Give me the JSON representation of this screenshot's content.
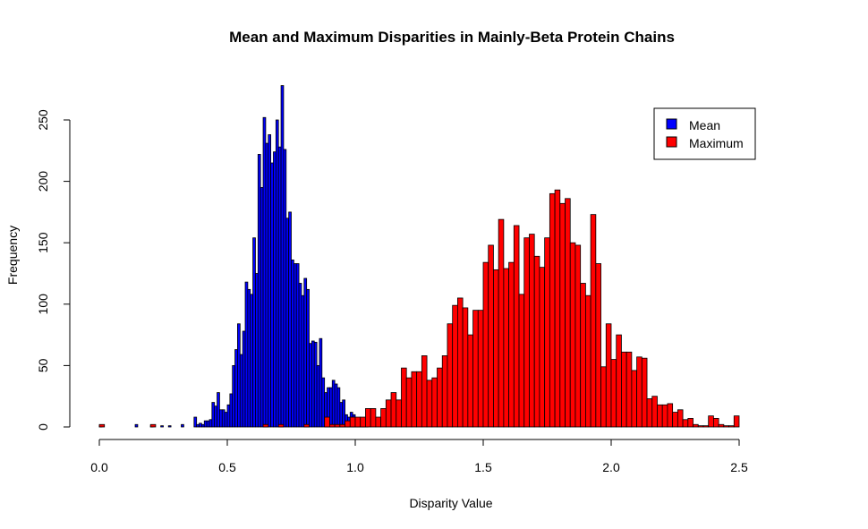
{
  "chart_data": {
    "type": "bar",
    "title": "Mean and Maximum Disparities in Mainly-Beta Protein Chains",
    "xlabel": "Disparity Value",
    "ylabel": "Frequency",
    "xlim": [
      0,
      2.5
    ],
    "ylim": [
      0,
      280
    ],
    "x_ticks": [
      {
        "value": 0.0,
        "label": "0.0"
      },
      {
        "value": 0.5,
        "label": "0.5"
      },
      {
        "value": 1.0,
        "label": "1.0"
      },
      {
        "value": 1.5,
        "label": "1.5"
      },
      {
        "value": 2.0,
        "label": "2.0"
      },
      {
        "value": 2.5,
        "label": "2.5"
      }
    ],
    "y_ticks": [
      {
        "value": 0,
        "label": "0"
      },
      {
        "value": 50,
        "label": "50"
      },
      {
        "value": 100,
        "label": "100"
      },
      {
        "value": 150,
        "label": "150"
      },
      {
        "value": 200,
        "label": "200"
      },
      {
        "value": 250,
        "label": "250"
      }
    ],
    "grid": false,
    "legend_position": "top-right",
    "legend": [
      {
        "label": "Mean",
        "color": "#0000ff"
      },
      {
        "label": "Maximum",
        "color": "#ff0000"
      }
    ],
    "series": [
      {
        "name": "Mean",
        "color": "#0000ff",
        "bin_width": 0.01,
        "bin_starts": [
          0.0,
          0.14,
          0.2,
          0.24,
          0.27,
          0.32,
          0.37,
          0.38,
          0.39,
          0.4,
          0.41,
          0.42,
          0.43,
          0.44,
          0.45,
          0.46,
          0.47,
          0.48,
          0.49,
          0.5,
          0.51,
          0.52,
          0.53,
          0.54,
          0.55,
          0.56,
          0.57,
          0.58,
          0.59,
          0.6,
          0.61,
          0.62,
          0.63,
          0.64,
          0.65,
          0.66,
          0.67,
          0.68,
          0.69,
          0.7,
          0.71,
          0.72,
          0.73,
          0.74,
          0.75,
          0.76,
          0.77,
          0.78,
          0.79,
          0.8,
          0.81,
          0.82,
          0.83,
          0.84,
          0.85,
          0.86,
          0.87,
          0.88,
          0.89,
          0.9,
          0.91,
          0.92,
          0.93,
          0.94,
          0.95,
          0.96,
          0.97,
          0.98,
          0.99,
          1.0,
          1.01,
          1.02,
          1.03,
          1.04
        ],
        "values": [
          1,
          2,
          1,
          1,
          1,
          2,
          8,
          2,
          3,
          2,
          5,
          5,
          6,
          20,
          17,
          28,
          14,
          14,
          12,
          18,
          27,
          50,
          63,
          84,
          59,
          78,
          118,
          112,
          108,
          154,
          125,
          222,
          195,
          252,
          231,
          238,
          215,
          224,
          250,
          228,
          278,
          226,
          170,
          175,
          136,
          133,
          133,
          117,
          107,
          121,
          112,
          68,
          70,
          69,
          50,
          72,
          40,
          28,
          32,
          32,
          38,
          35,
          32,
          20,
          22,
          10,
          8,
          12,
          10,
          5,
          3,
          3,
          2,
          1
        ]
      },
      {
        "name": "Maximum",
        "color": "#ff0000",
        "bin_width": 0.02,
        "bin_starts": [
          0.0,
          0.2,
          0.64,
          0.7,
          0.8,
          0.88,
          0.9,
          0.92,
          0.94,
          0.96,
          0.98,
          1.0,
          1.02,
          1.04,
          1.06,
          1.08,
          1.1,
          1.12,
          1.14,
          1.16,
          1.18,
          1.2,
          1.22,
          1.24,
          1.26,
          1.28,
          1.3,
          1.32,
          1.34,
          1.36,
          1.38,
          1.4,
          1.42,
          1.44,
          1.46,
          1.48,
          1.5,
          1.52,
          1.54,
          1.56,
          1.58,
          1.6,
          1.62,
          1.64,
          1.66,
          1.68,
          1.7,
          1.72,
          1.74,
          1.76,
          1.78,
          1.8,
          1.82,
          1.84,
          1.86,
          1.88,
          1.9,
          1.92,
          1.94,
          1.96,
          1.98,
          2.0,
          2.02,
          2.04,
          2.06,
          2.08,
          2.1,
          2.12,
          2.14,
          2.16,
          2.18,
          2.2,
          2.22,
          2.24,
          2.26,
          2.28,
          2.3,
          2.32,
          2.34,
          2.36,
          2.38,
          2.4,
          2.42,
          2.44,
          2.46,
          2.48
        ],
        "values": [
          2,
          2,
          2,
          2,
          2,
          8,
          2,
          2,
          2,
          5,
          8,
          8,
          8,
          15,
          15,
          8,
          15,
          22,
          28,
          22,
          48,
          40,
          45,
          45,
          58,
          38,
          40,
          48,
          58,
          84,
          99,
          105,
          97,
          75,
          95,
          95,
          134,
          148,
          128,
          169,
          129,
          134,
          164,
          108,
          154,
          157,
          139,
          130,
          154,
          190,
          193,
          182,
          186,
          150,
          148,
          117,
          107,
          173,
          133,
          49,
          84,
          55,
          75,
          61,
          61,
          46,
          57,
          56,
          23,
          25,
          18,
          18,
          19,
          12,
          14,
          6,
          7,
          2,
          1,
          1,
          9,
          7,
          2,
          1,
          1,
          9
        ]
      }
    ]
  }
}
